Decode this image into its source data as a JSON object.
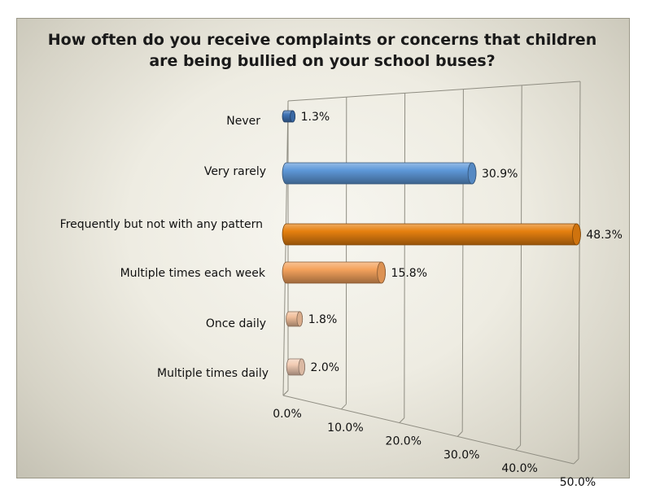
{
  "chart_data": {
    "type": "bar",
    "orientation": "horizontal",
    "title_lines": [
      "How often do you receive complaints or concerns that children",
      "are being bullied on your school buses?"
    ],
    "categories": [
      "Never",
      "Very rarely",
      "Frequently but not with any pattern",
      "Multiple times each week",
      "Once daily",
      "Multiple times daily"
    ],
    "values": [
      1.3,
      30.9,
      48.3,
      15.8,
      1.8,
      2.0
    ],
    "value_labels": [
      "1.3%",
      "30.9%",
      "48.3%",
      "15.8%",
      "1.8%",
      "2.0%"
    ],
    "colors": [
      "#3f73b5",
      "#5e98d9",
      "#e6800f",
      "#f4a25c",
      "#f2c09c",
      "#f3cdb5"
    ],
    "xlim": [
      0,
      50
    ],
    "ticks": [
      0,
      10,
      20,
      30,
      40,
      50
    ],
    "tick_labels": [
      "0.0%",
      "10.0%",
      "20.0%",
      "30.0%",
      "40.0%",
      "50.0%"
    ],
    "grid": true,
    "legend": "none",
    "style": "3d-cylinder"
  }
}
